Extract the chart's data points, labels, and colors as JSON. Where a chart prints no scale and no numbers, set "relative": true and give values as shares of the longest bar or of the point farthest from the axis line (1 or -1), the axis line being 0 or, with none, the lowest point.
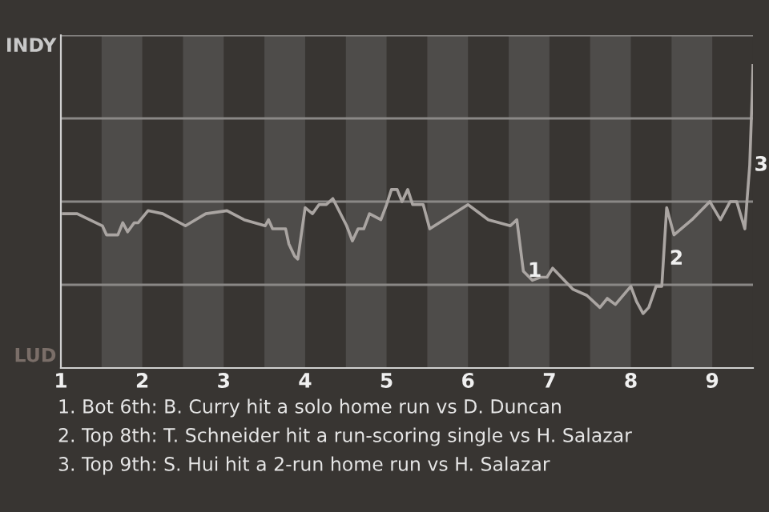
{
  "chart_data": {
    "type": "line",
    "relative": true,
    "x": [
      1.03,
      1.2,
      1.51,
      1.56,
      1.7,
      1.76,
      1.82,
      1.9,
      1.95,
      2.07,
      2.25,
      2.53,
      2.78,
      3.04,
      3.25,
      3.51,
      3.55,
      3.6,
      3.76,
      3.8,
      3.87,
      3.91,
      4.0,
      4.09,
      4.17,
      4.26,
      4.34,
      4.51,
      4.58,
      4.65,
      4.72,
      4.79,
      4.93,
      5.0,
      5.06,
      5.13,
      5.19,
      5.26,
      5.32,
      5.45,
      5.53,
      6.0,
      6.25,
      6.52,
      6.6,
      6.68,
      6.79,
      6.89,
      6.97,
      7.04,
      7.29,
      7.46,
      7.62,
      7.71,
      7.81,
      8.0,
      8.07,
      8.15,
      8.22,
      8.31,
      8.38,
      8.44,
      8.53,
      8.75,
      8.97,
      9.1,
      9.22,
      9.3,
      9.4,
      9.46,
      9.49,
      9.5
    ],
    "series": [
      {
        "color": "#aaa5a2",
        "values": [
          0.51,
          0.51,
          0.47,
          0.44,
          0.44,
          0.48,
          0.45,
          0.48,
          0.48,
          0.52,
          0.51,
          0.47,
          0.51,
          0.52,
          0.49,
          0.47,
          0.49,
          0.46,
          0.46,
          0.41,
          0.37,
          0.36,
          0.53,
          0.51,
          0.54,
          0.54,
          0.56,
          0.47,
          0.42,
          0.46,
          0.46,
          0.51,
          0.49,
          0.54,
          0.59,
          0.59,
          0.55,
          0.59,
          0.54,
          0.54,
          0.46,
          0.54,
          0.49,
          0.47,
          0.49,
          0.32,
          0.29,
          0.3,
          0.3,
          0.33,
          0.26,
          0.24,
          0.2,
          0.23,
          0.21,
          0.27,
          0.22,
          0.18,
          0.2,
          0.27,
          0.27,
          0.53,
          0.44,
          0.49,
          0.55,
          0.49,
          0.55,
          0.55,
          0.46,
          0.67,
          0.9,
          1
        ]
      }
    ],
    "xlim": [
      1,
      9.5
    ],
    "xticks": [
      1,
      2,
      3,
      4,
      5,
      6,
      7,
      8,
      9
    ],
    "tick_labels": "x",
    "grid": "y",
    "bands": [
      {
        "axis": "x",
        "from": 1.5,
        "to": 2,
        "color": "#4e4c4a"
      },
      {
        "axis": "x",
        "from": 2.5,
        "to": 3,
        "color": "#4e4c4a"
      },
      {
        "axis": "x",
        "from": 3.5,
        "to": 4,
        "color": "#4e4c4a"
      },
      {
        "axis": "x",
        "from": 4.5,
        "to": 5,
        "color": "#4e4c4a"
      },
      {
        "axis": "x",
        "from": 5.5,
        "to": 6,
        "color": "#4e4c4a"
      },
      {
        "axis": "x",
        "from": 6.5,
        "to": 7,
        "color": "#4e4c4a"
      },
      {
        "axis": "x",
        "from": 7.5,
        "to": 8,
        "color": "#4e4c4a"
      },
      {
        "axis": "x",
        "from": 8.5,
        "to": 9,
        "color": "#4e4c4a"
      }
    ],
    "annotations": [
      "INDY",
      "LUD",
      {
        "text": "1",
        "x": 6.68,
        "y": 0.32
      },
      {
        "text": "2",
        "x": 8.42,
        "y": 0.36
      },
      {
        "text": "3",
        "x": 9.46,
        "y": 0.67
      },
      "1. Bot 6th: B. Curry hit a solo home run vs D. Duncan",
      "2. Top 8th: T. Schneider hit a run-scoring single vs H. Salazar",
      "3. Top 9th: S. Hui hit a 2-run home run vs H. Salazar"
    ],
    "marker": "none",
    "line_style": "solid"
  }
}
